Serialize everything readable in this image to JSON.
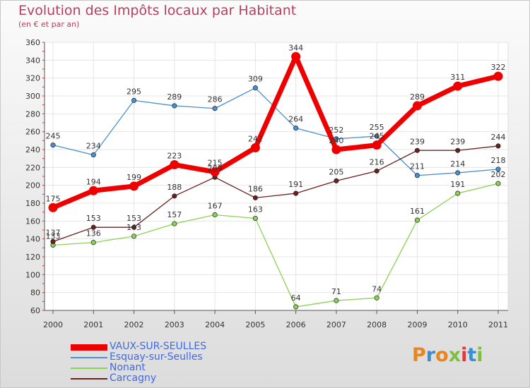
{
  "title": "Evolution des Impôts locaux par Habitant",
  "subtitle": "(en € et par an)",
  "logo_text": "Proxiti",
  "logo_colors": [
    "#e8851e",
    "#3a8fd0",
    "#e8851e",
    "#7fbf3f",
    "#e03a3a",
    "#3a8fd0",
    "#7fbf3f"
  ],
  "chart_data": {
    "type": "line",
    "x": [
      "2000",
      "2001",
      "2002",
      "2003",
      "2004",
      "2005",
      "2006",
      "2007",
      "2008",
      "2009",
      "2010",
      "2011"
    ],
    "ylim": [
      60,
      360
    ],
    "yticks": [
      60,
      80,
      100,
      120,
      140,
      160,
      180,
      200,
      220,
      240,
      260,
      280,
      300,
      320,
      340,
      360
    ],
    "grid": true,
    "legend_position": "bottom-left",
    "series": [
      {
        "name": "VAUX-SUR-SEULLES",
        "color": "#ee0000",
        "values": [
          175,
          194,
          199,
          223,
          215,
          242,
          344,
          240,
          245,
          289,
          311,
          322
        ],
        "labels": [
          "175",
          "194",
          "199",
          "223",
          "215",
          "242",
          "344",
          "240",
          "245",
          "289",
          "311",
          "322"
        ]
      },
      {
        "name": "Esquay-sur-Seulles",
        "color": "#4a8fcf",
        "values": [
          245,
          234,
          295,
          289,
          286,
          309,
          264,
          252,
          255,
          211,
          214,
          218
        ],
        "labels": [
          "245",
          "234",
          "295",
          "289",
          "286",
          "309",
          "264",
          "252",
          "255",
          "211",
          "214",
          "218"
        ]
      },
      {
        "name": "Nonant",
        "color": "#8bd156",
        "values": [
          133,
          136,
          143,
          157,
          167,
          163,
          64,
          71,
          74,
          161,
          191,
          202
        ],
        "labels": [
          "133",
          "136",
          "143",
          "157",
          "167",
          "163",
          "64",
          "71",
          "74",
          "161",
          "191",
          "202"
        ]
      },
      {
        "name": "Carcagny",
        "color": "#6b2020",
        "values": [
          137,
          153,
          153,
          188,
          209,
          186,
          191,
          205,
          216,
          239,
          239,
          244
        ],
        "labels": [
          "137",
          "153",
          "153",
          "188",
          "209",
          "186",
          "191",
          "205",
          "216",
          "239",
          "239",
          "244"
        ]
      }
    ]
  }
}
